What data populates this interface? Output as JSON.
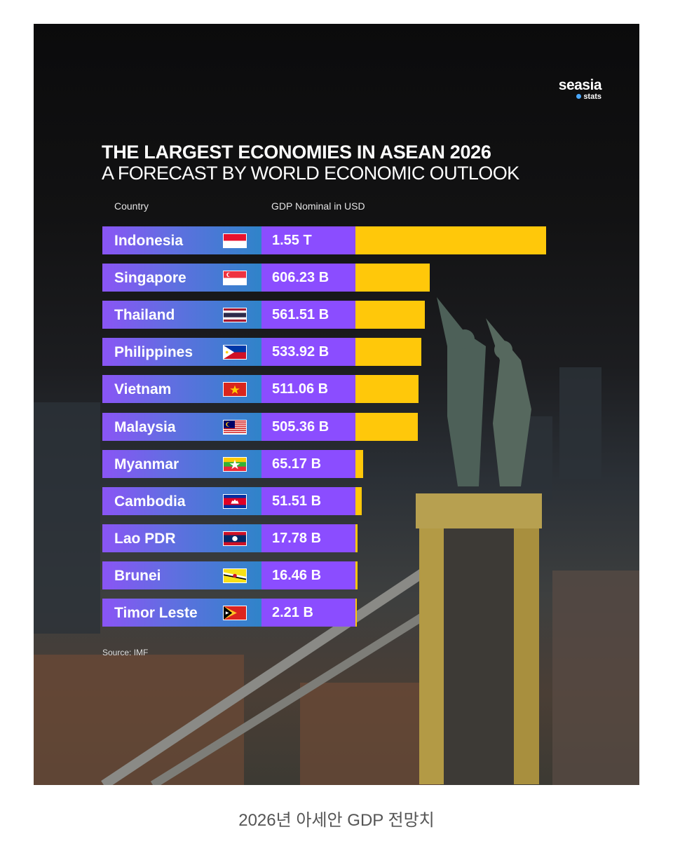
{
  "logo": {
    "brand": "seasia",
    "sub": "stats"
  },
  "colors": {
    "country_cell": "#8a55f5",
    "value_cell": "#8b4dff",
    "bar": "#ffc80a",
    "background": "#0b0b0c"
  },
  "caption": "2026년 아세안 GDP 전망치",
  "chart_data": {
    "type": "bar",
    "orientation": "horizontal",
    "title": "THE LARGEST ECONOMIES IN ASEAN 2026",
    "subtitle": "A FORECAST BY WORLD ECONOMIC OUTLOOK",
    "column_headers": {
      "country": "Country",
      "gdp": "GDP Nominal in USD"
    },
    "unit": "USD billions",
    "source": "Source: IMF",
    "rows": [
      {
        "country": "Indonesia",
        "flag": "indonesia-flag-icon",
        "label": "1.55 T",
        "value": 1550
      },
      {
        "country": "Singapore",
        "flag": "singapore-flag-icon",
        "label": "606.23 B",
        "value": 606.23
      },
      {
        "country": "Thailand",
        "flag": "thailand-flag-icon",
        "label": "561.51 B",
        "value": 561.51
      },
      {
        "country": "Philippines",
        "flag": "philippines-flag-icon",
        "label": "533.92 B",
        "value": 533.92
      },
      {
        "country": "Vietnam",
        "flag": "vietnam-flag-icon",
        "label": "511.06 B",
        "value": 511.06
      },
      {
        "country": "Malaysia",
        "flag": "malaysia-flag-icon",
        "label": "505.36 B",
        "value": 505.36
      },
      {
        "country": "Myanmar",
        "flag": "myanmar-flag-icon",
        "label": "65.17 B",
        "value": 65.17
      },
      {
        "country": "Cambodia",
        "flag": "cambodia-flag-icon",
        "label": "51.51 B",
        "value": 51.51
      },
      {
        "country": "Lao PDR",
        "flag": "laos-flag-icon",
        "label": "17.78 B",
        "value": 17.78
      },
      {
        "country": "Brunei",
        "flag": "brunei-flag-icon",
        "label": "16.46 B",
        "value": 16.46
      },
      {
        "country": "Timor Leste",
        "flag": "timor-leste-flag-icon",
        "label": "2.21 B",
        "value": 2.21
      }
    ]
  }
}
